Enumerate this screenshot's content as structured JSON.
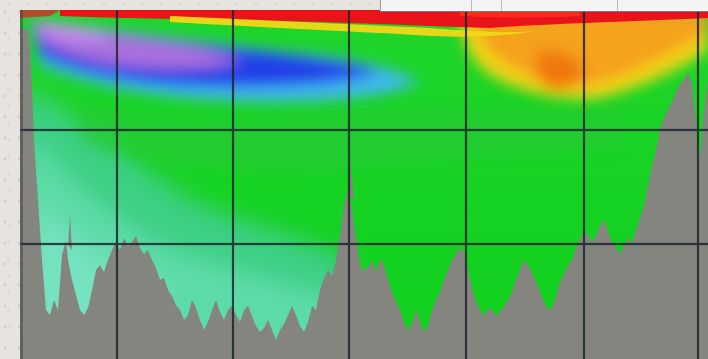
{
  "figure": {
    "description_type": "ocean-section-colormap",
    "colors": {
      "terrain": "#858580",
      "grid": "#1d2430",
      "deep_teal": "#5fdca8",
      "mid_green": "#22c23a",
      "bright_green": "#12d418",
      "cool_blue": "#2030e0",
      "violet": "#b070d8",
      "cyan": "#38c8f0",
      "red": "#ee1418",
      "orange": "#f48a10",
      "yellow": "#f4d812"
    }
  }
}
